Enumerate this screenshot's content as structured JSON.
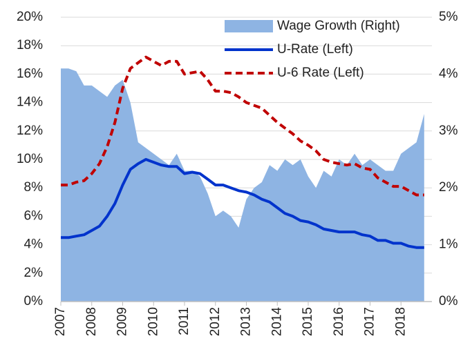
{
  "chart_data": {
    "type": "line",
    "x": [
      2007,
      2007.25,
      2007.5,
      2007.75,
      2008,
      2008.25,
      2008.5,
      2008.75,
      2009,
      2009.25,
      2009.5,
      2009.75,
      2010,
      2010.25,
      2010.5,
      2010.75,
      2011,
      2011.25,
      2011.5,
      2011.75,
      2012,
      2012.25,
      2012.5,
      2012.75,
      2013,
      2013.25,
      2013.5,
      2013.75,
      2014,
      2014.25,
      2014.5,
      2014.75,
      2015,
      2015.25,
      2015.5,
      2015.75,
      2016,
      2016.25,
      2016.5,
      2016.75,
      2017,
      2017.25,
      2017.5,
      2017.75,
      2018,
      2018.25,
      2018.5,
      2018.75
    ],
    "series": [
      {
        "name": "Wage Growth (Right)",
        "color": "#8eb4e3",
        "kind": "area",
        "axis": "y2",
        "values": [
          4.1,
          4.1,
          4.05,
          3.8,
          3.8,
          3.7,
          3.6,
          3.8,
          3.9,
          3.5,
          2.8,
          2.7,
          2.6,
          2.5,
          2.4,
          2.6,
          2.3,
          2.3,
          2.2,
          1.9,
          1.5,
          1.6,
          1.5,
          1.3,
          1.8,
          2.0,
          2.1,
          2.4,
          2.3,
          2.5,
          2.4,
          2.5,
          2.2,
          2.0,
          2.3,
          2.2,
          2.5,
          2.4,
          2.6,
          2.4,
          2.5,
          2.4,
          2.3,
          2.3,
          2.6,
          2.7,
          2.8,
          3.3
        ]
      },
      {
        "name": "U-Rate (Left)",
        "color": "#0033cc",
        "kind": "solid",
        "values": [
          4.5,
          4.5,
          4.6,
          4.7,
          5.0,
          5.3,
          6.0,
          6.9,
          8.2,
          9.3,
          9.7,
          10.0,
          9.8,
          9.6,
          9.5,
          9.5,
          9.0,
          9.1,
          9.0,
          8.6,
          8.2,
          8.2,
          8.0,
          7.8,
          7.7,
          7.5,
          7.2,
          7.0,
          6.6,
          6.2,
          6.0,
          5.7,
          5.6,
          5.4,
          5.1,
          5.0,
          4.9,
          4.9,
          4.9,
          4.7,
          4.6,
          4.3,
          4.3,
          4.1,
          4.1,
          3.9,
          3.8,
          3.8
        ]
      },
      {
        "name": "U-6 Rate (Left)",
        "color": "#c00000",
        "kind": "dashed",
        "values": [
          8.2,
          8.2,
          8.4,
          8.5,
          9.0,
          9.7,
          10.9,
          12.6,
          15.0,
          16.4,
          16.8,
          17.2,
          16.9,
          16.6,
          16.9,
          16.9,
          16.0,
          16.1,
          16.2,
          15.6,
          14.8,
          14.8,
          14.7,
          14.4,
          14.0,
          13.8,
          13.6,
          13.1,
          12.6,
          12.2,
          11.8,
          11.3,
          11.0,
          10.6,
          10.0,
          9.8,
          9.7,
          9.6,
          9.7,
          9.4,
          9.3,
          8.7,
          8.4,
          8.1,
          8.1,
          7.8,
          7.5,
          7.5
        ]
      }
    ],
    "xlim": [
      2007,
      2019
    ],
    "xticks": [
      2007,
      2008,
      2009,
      2010,
      2011,
      2012,
      2013,
      2014,
      2015,
      2016,
      2017,
      2018
    ],
    "ylim": [
      0,
      20
    ],
    "yticks": [
      {
        "value": 0,
        "label": "0%"
      },
      {
        "value": 2,
        "label": "2%"
      },
      {
        "value": 4,
        "label": "4%"
      },
      {
        "value": 6,
        "label": "6%"
      },
      {
        "value": 8,
        "label": "8%"
      },
      {
        "value": 10,
        "label": "10%"
      },
      {
        "value": 12,
        "label": "12%"
      },
      {
        "value": 14,
        "label": "14%"
      },
      {
        "value": 16,
        "label": "16%"
      },
      {
        "value": 18,
        "label": "18%"
      },
      {
        "value": 20,
        "label": "20%"
      }
    ],
    "y2lim": [
      0,
      5
    ],
    "y2ticks": [
      {
        "value": 0,
        "label": "0%"
      },
      {
        "value": 1,
        "label": "1%"
      },
      {
        "value": 2,
        "label": "2%"
      },
      {
        "value": 3,
        "label": "3%"
      },
      {
        "value": 4,
        "label": "4%"
      },
      {
        "value": 5,
        "label": "5%"
      }
    ],
    "grid": true,
    "legend": "upper right"
  }
}
